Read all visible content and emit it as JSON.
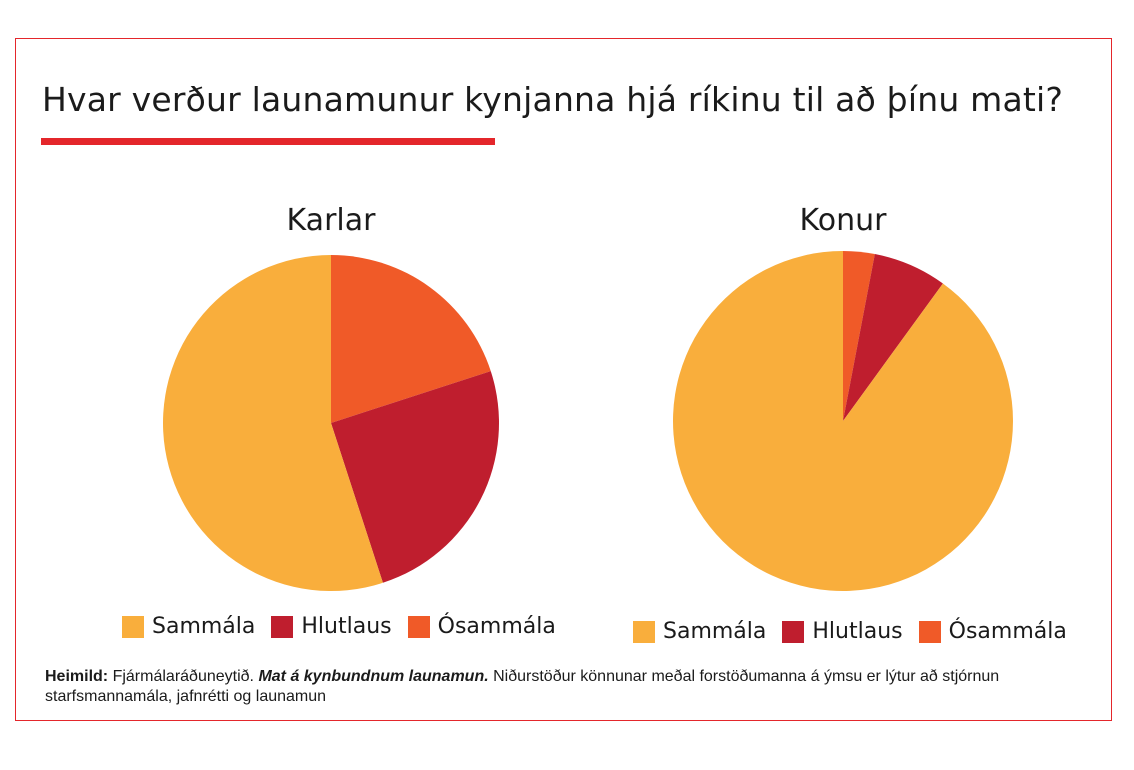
{
  "title": "Hvar verður launamunur kynjanna hjá ríkinu til að þínu mati?",
  "colors": {
    "accent": "#e4262b",
    "Sammála": "#f9ae3c",
    "Hlutlaus": "#bf1e2e",
    "Ósammála": "#f05a28"
  },
  "chart_data": [
    {
      "type": "pie",
      "title": "Karlar",
      "categories": [
        "Sammála",
        "Hlutlaus",
        "Ósammála"
      ],
      "values": [
        55,
        25,
        20
      ],
      "legend": [
        "Sammála",
        "Hlutlaus",
        "Ósammála"
      ]
    },
    {
      "type": "pie",
      "title": "Konur",
      "categories": [
        "Sammála",
        "Hlutlaus",
        "Ósammála"
      ],
      "values": [
        90,
        7,
        3
      ],
      "legend": [
        "Sammála",
        "Hlutlaus",
        "Ósammála"
      ]
    }
  ],
  "source": {
    "label": "Heimild:",
    "publisher": "Fjármálaráðuneytið.",
    "work": "Mat á kynbundnum launamun.",
    "description": "Niðurstöður könnunar meðal forstöðumanna á ýmsu er lýtur að stjórnun starfsmannamála, jafnrétti og launamun"
  }
}
